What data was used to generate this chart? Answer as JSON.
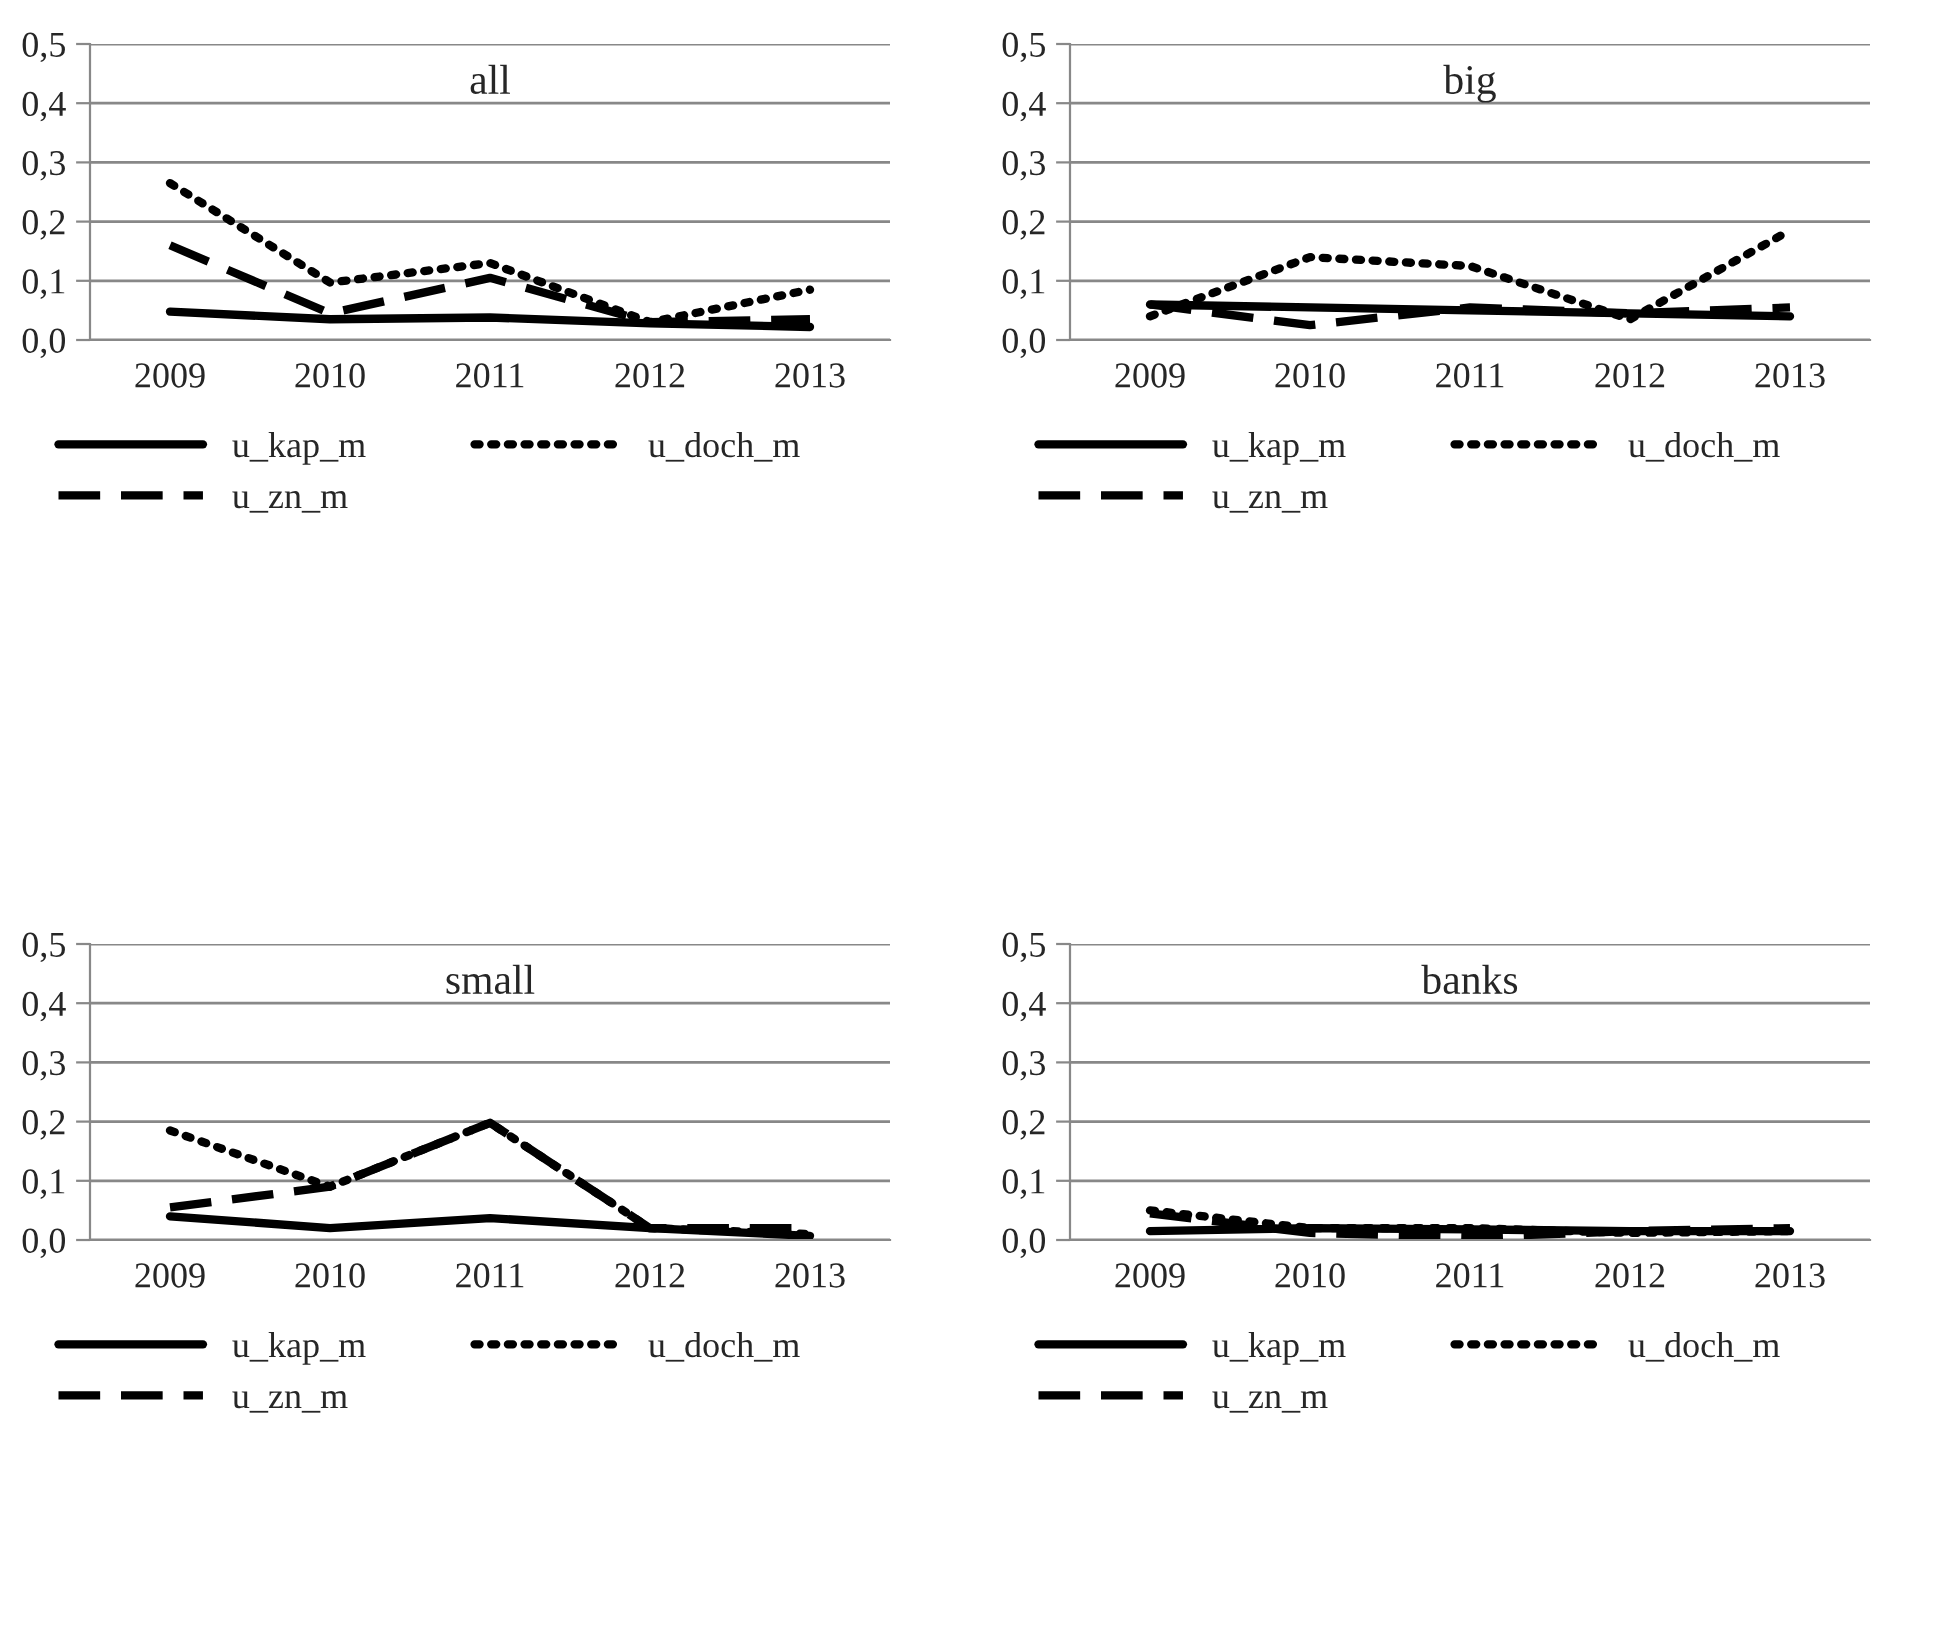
{
  "chart_data": [
    {
      "type": "line",
      "title": "all",
      "categories": [
        "2009",
        "2010",
        "2011",
        "2012",
        "2013"
      ],
      "ylim": [
        0,
        0.5
      ],
      "yticks": [
        {
          "value": 0,
          "label": "0,0"
        },
        {
          "value": 0.1,
          "label": "0,1"
        },
        {
          "value": 0.2,
          "label": "0,2"
        },
        {
          "value": 0.3,
          "label": "0,3"
        },
        {
          "value": 0.4,
          "label": "0,4"
        },
        {
          "value": 0.5,
          "label": "0,5"
        }
      ],
      "grid": "y",
      "legend": "bottom",
      "marker": "none",
      "series": [
        {
          "name": "u_kap_m",
          "color": "#000000",
          "line_style": "solid",
          "values": [
            0.048,
            0.035,
            0.038,
            0.028,
            0.022
          ]
        },
        {
          "name": "u_zn_m",
          "color": "#000000",
          "line_style": "dashed",
          "values": [
            0.16,
            0.045,
            0.105,
            0.03,
            0.035
          ]
        },
        {
          "name": "u_doch_m",
          "color": "#000000",
          "line_style": "dotted",
          "values": [
            0.265,
            0.097,
            0.13,
            0.03,
            0.085
          ]
        }
      ]
    },
    {
      "type": "line",
      "title": "big",
      "categories": [
        "2009",
        "2010",
        "2011",
        "2012",
        "2013"
      ],
      "ylim": [
        0,
        0.5
      ],
      "yticks": [
        {
          "value": 0,
          "label": "0,0"
        },
        {
          "value": 0.1,
          "label": "0,1"
        },
        {
          "value": 0.2,
          "label": "0,2"
        },
        {
          "value": 0.3,
          "label": "0,3"
        },
        {
          "value": 0.4,
          "label": "0,4"
        },
        {
          "value": 0.5,
          "label": "0,5"
        }
      ],
      "grid": "y",
      "legend": "bottom",
      "marker": "none",
      "series": [
        {
          "name": "u_kap_m",
          "color": "#000000",
          "line_style": "solid",
          "values": [
            0.06,
            0.055,
            0.05,
            0.045,
            0.04
          ]
        },
        {
          "name": "u_zn_m",
          "color": "#000000",
          "line_style": "dashed",
          "values": [
            0.06,
            0.025,
            0.055,
            0.045,
            0.055
          ]
        },
        {
          "name": "u_doch_m",
          "color": "#000000",
          "line_style": "dotted",
          "values": [
            0.04,
            0.14,
            0.125,
            0.035,
            0.185
          ]
        }
      ]
    },
    {
      "type": "line",
      "title": "small",
      "categories": [
        "2009",
        "2010",
        "2011",
        "2012",
        "2013"
      ],
      "ylim": [
        0,
        0.5
      ],
      "yticks": [
        {
          "value": 0,
          "label": "0,0"
        },
        {
          "value": 0.1,
          "label": "0,1"
        },
        {
          "value": 0.2,
          "label": "0,2"
        },
        {
          "value": 0.3,
          "label": "0,3"
        },
        {
          "value": 0.4,
          "label": "0,4"
        },
        {
          "value": 0.5,
          "label": "0,5"
        }
      ],
      "grid": "y",
      "legend": "bottom",
      "marker": "none",
      "series": [
        {
          "name": "u_kap_m",
          "color": "#000000",
          "line_style": "solid",
          "values": [
            0.04,
            0.02,
            0.037,
            0.02,
            0.007
          ]
        },
        {
          "name": "u_zn_m",
          "color": "#000000",
          "line_style": "dashed",
          "values": [
            0.055,
            0.09,
            0.198,
            0.02,
            0.02
          ]
        },
        {
          "name": "u_doch_m",
          "color": "#000000",
          "line_style": "dotted",
          "values": [
            0.185,
            0.09,
            0.198,
            0.02,
            0.01
          ]
        }
      ]
    },
    {
      "type": "line",
      "title": "banks",
      "categories": [
        "2009",
        "2010",
        "2011",
        "2012",
        "2013"
      ],
      "ylim": [
        0,
        0.5
      ],
      "yticks": [
        {
          "value": 0,
          "label": "0,0"
        },
        {
          "value": 0.1,
          "label": "0,1"
        },
        {
          "value": 0.2,
          "label": "0,2"
        },
        {
          "value": 0.3,
          "label": "0,3"
        },
        {
          "value": 0.4,
          "label": "0,4"
        },
        {
          "value": 0.5,
          "label": "0,5"
        }
      ],
      "grid": "y",
      "legend": "bottom",
      "marker": "none",
      "series": [
        {
          "name": "u_kap_m",
          "color": "#000000",
          "line_style": "solid",
          "values": [
            0.015,
            0.02,
            0.018,
            0.015,
            0.015
          ]
        },
        {
          "name": "u_zn_m",
          "color": "#000000",
          "line_style": "dashed",
          "values": [
            0.045,
            0.012,
            0.005,
            0.015,
            0.02
          ]
        },
        {
          "name": "u_doch_m",
          "color": "#000000",
          "line_style": "dotted",
          "values": [
            0.05,
            0.02,
            0.02,
            0.012,
            0.015
          ]
        }
      ]
    }
  ]
}
